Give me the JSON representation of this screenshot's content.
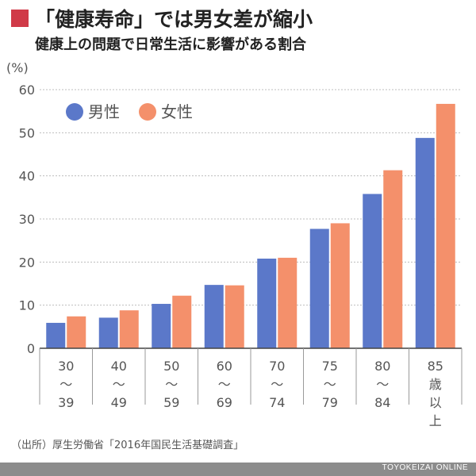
{
  "header": {
    "title": "「健康寿命」では男女差が縮小",
    "subtitle": "健康上の問題で日常生活に影響がある割合"
  },
  "source": "（出所）厚生労働省「2016年国民生活基礎調査」",
  "brand": "TOYOKEIZAI ONLINE",
  "colors": {
    "male": "#5b78c9",
    "female": "#f4906b",
    "accent": "#d03a48"
  },
  "chart_data": {
    "type": "bar",
    "title": "「健康寿命」では男女差が縮小",
    "subtitle": "健康上の問題で日常生活に影響がある割合",
    "ylabel": "(%)",
    "ylim": [
      0,
      60
    ],
    "yticks": [
      0,
      10,
      20,
      30,
      40,
      50,
      60
    ],
    "grid": true,
    "legend": "top-left",
    "categories": [
      [
        "30",
        "〜",
        "39"
      ],
      [
        "40",
        "〜",
        "49"
      ],
      [
        "50",
        "〜",
        "59"
      ],
      [
        "60",
        "〜",
        "69"
      ],
      [
        "70",
        "〜",
        "74"
      ],
      [
        "75",
        "〜",
        "79"
      ],
      [
        "80",
        "〜",
        "84"
      ],
      [
        "85",
        "歳",
        "以",
        "上"
      ]
    ],
    "series": [
      {
        "name": "男性",
        "values": [
          5.9,
          7.1,
          10.3,
          14.7,
          20.8,
          27.7,
          35.8,
          48.8
        ]
      },
      {
        "name": "女性",
        "values": [
          7.4,
          8.8,
          12.2,
          14.6,
          21.0,
          29.0,
          41.3,
          56.7
        ]
      }
    ]
  }
}
